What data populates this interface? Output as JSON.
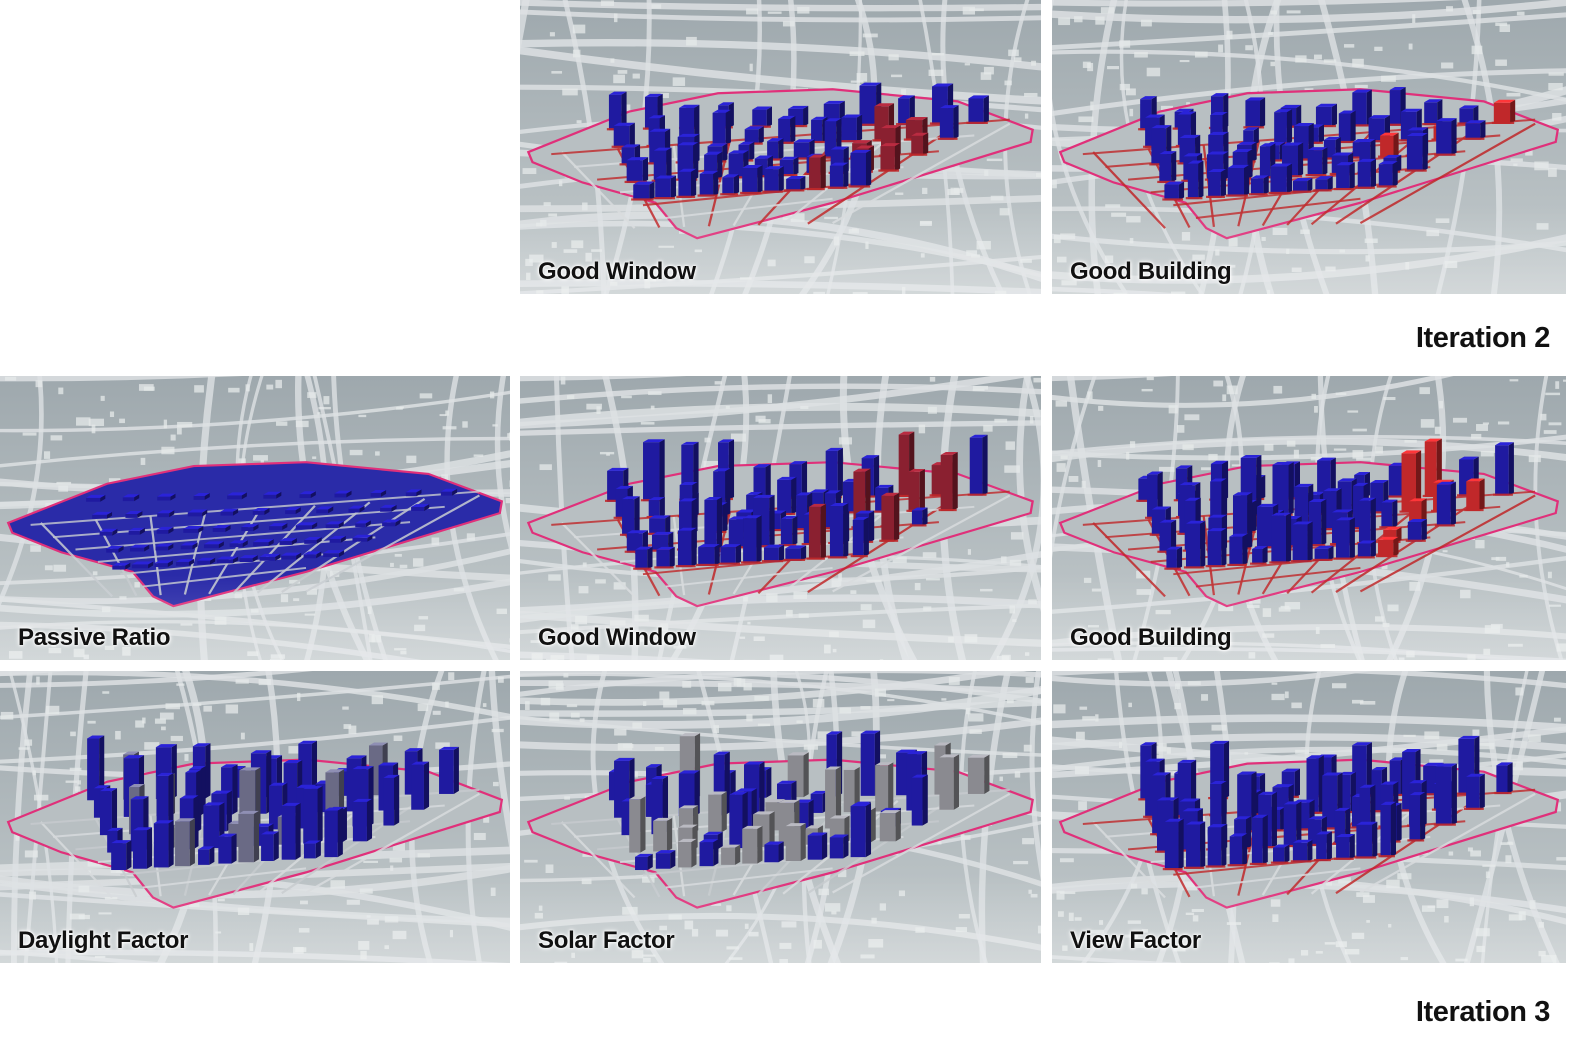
{
  "panels": [
    {
      "id": "it2-window",
      "label": "Good Window",
      "scheme": "window",
      "tall": 0.55
    },
    {
      "id": "it2-building",
      "label": "Good Building",
      "scheme": "building",
      "tall": 0.55
    },
    {
      "id": "it3-passive",
      "label": "Passive Ratio",
      "scheme": "passive",
      "tall": 0.0
    },
    {
      "id": "it3-window",
      "label": "Good Window",
      "scheme": "window",
      "tall": 1.0
    },
    {
      "id": "it3-building",
      "label": "Good Building",
      "scheme": "building",
      "tall": 1.0
    },
    {
      "id": "it3-daylight",
      "label": "Daylight Factor",
      "scheme": "daylight",
      "tall": 1.0
    },
    {
      "id": "it3-solar",
      "label": "Solar Factor",
      "scheme": "solar",
      "tall": 1.0
    },
    {
      "id": "it3-view",
      "label": "View Factor",
      "scheme": "view",
      "tall": 1.0
    }
  ],
  "iterations": {
    "second": "Iteration 2",
    "third": "Iteration 3"
  },
  "colors": {
    "background_map": "#aab3b7",
    "street": "#dde1e3",
    "site_outline": "#e0307a",
    "blue": "#1f1aa0",
    "red": "#c0282a",
    "grey": "#8a8a90"
  }
}
